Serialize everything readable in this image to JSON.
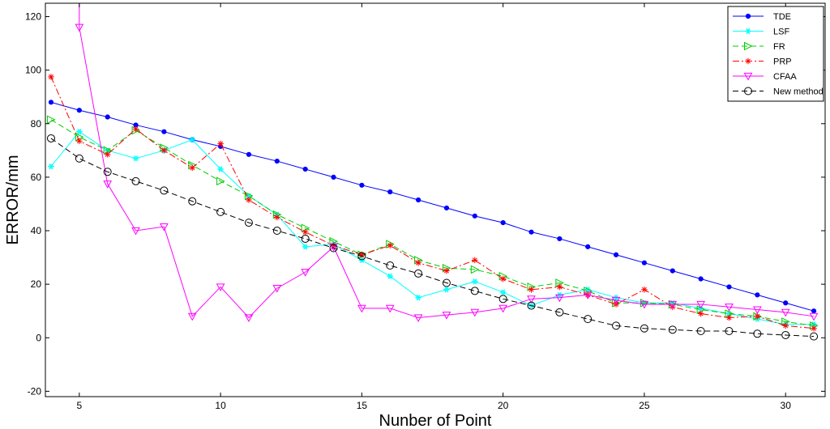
{
  "chart_data": {
    "type": "line",
    "title": "",
    "xlabel": "Nunber of Point",
    "ylabel": "ERROR/mm",
    "xlim": [
      3.8,
      31.4
    ],
    "ylim": [
      -22,
      125
    ],
    "xticks": [
      5,
      10,
      15,
      20,
      25,
      30
    ],
    "yticks": [
      -20,
      0,
      20,
      40,
      60,
      80,
      100,
      120
    ],
    "grid": false,
    "legend_position": "top-right",
    "x": [
      4,
      5,
      6,
      7,
      8,
      9,
      10,
      11,
      12,
      13,
      14,
      15,
      16,
      17,
      18,
      19,
      20,
      21,
      22,
      23,
      24,
      25,
      26,
      27,
      28,
      29,
      30,
      31
    ],
    "series": [
      {
        "name": "TDE",
        "color": "#0000ff",
        "dash": "solid",
        "marker": "dot",
        "values": [
          88,
          85,
          82.5,
          79.5,
          77,
          74,
          71.5,
          68.5,
          66,
          63,
          60,
          57,
          54.5,
          51.5,
          48.5,
          45.5,
          43,
          39.5,
          37,
          34,
          31,
          28,
          25,
          22,
          19,
          16,
          13,
          10
        ]
      },
      {
        "name": "LSF",
        "color": "#00ffff",
        "dash": "solid",
        "marker": "star",
        "values": [
          64,
          77,
          70,
          67,
          70,
          74,
          63,
          53,
          46,
          34,
          35,
          29,
          23,
          15,
          18,
          21,
          17,
          12,
          16,
          18,
          15,
          13,
          13,
          11,
          9,
          7,
          5,
          5
        ]
      },
      {
        "name": "FR",
        "color": "#00cc00",
        "dash": "dashed",
        "marker": "triangle-right",
        "values": [
          81.5,
          75,
          70,
          77.5,
          71,
          64.5,
          58.5,
          53,
          46,
          41,
          36,
          31,
          35,
          29,
          26,
          25.5,
          23,
          19,
          20.5,
          17.5,
          13,
          13,
          12.5,
          10.5,
          9,
          8,
          6,
          4.5
        ]
      },
      {
        "name": "PRP",
        "color": "#ff0000",
        "dash": "dashdot",
        "marker": "asterisk",
        "values": [
          97.5,
          73.5,
          68.5,
          78,
          70,
          63.5,
          72.5,
          51.5,
          45,
          39.5,
          34.5,
          31,
          34.5,
          28,
          25,
          29,
          22,
          18,
          19,
          16,
          12.5,
          18,
          11.5,
          9,
          7.5,
          8,
          4.5,
          3.5
        ]
      },
      {
        "name": "CFAA",
        "color": "#ff00ff",
        "dash": "solid",
        "marker": "triangle-down",
        "values": [
          null,
          116,
          57.5,
          40,
          41.5,
          8,
          19,
          7.5,
          18.5,
          24.5,
          34,
          11,
          11,
          7.5,
          8.5,
          9.5,
          11,
          14.5,
          15,
          16,
          14,
          12.5,
          12.5,
          12.5,
          11.5,
          10.5,
          9.5,
          8
        ]
      },
      {
        "name": "New method",
        "color": "#000000",
        "dash": "dashed",
        "marker": "circle",
        "values": [
          74.5,
          67,
          62,
          58.5,
          55,
          51,
          47,
          43,
          40,
          37,
          33.5,
          30.5,
          27,
          24,
          20.5,
          17.5,
          14.5,
          12,
          9.5,
          7,
          4.5,
          3.5,
          3,
          2.5,
          2.5,
          1.5,
          1,
          0.5
        ]
      }
    ]
  }
}
